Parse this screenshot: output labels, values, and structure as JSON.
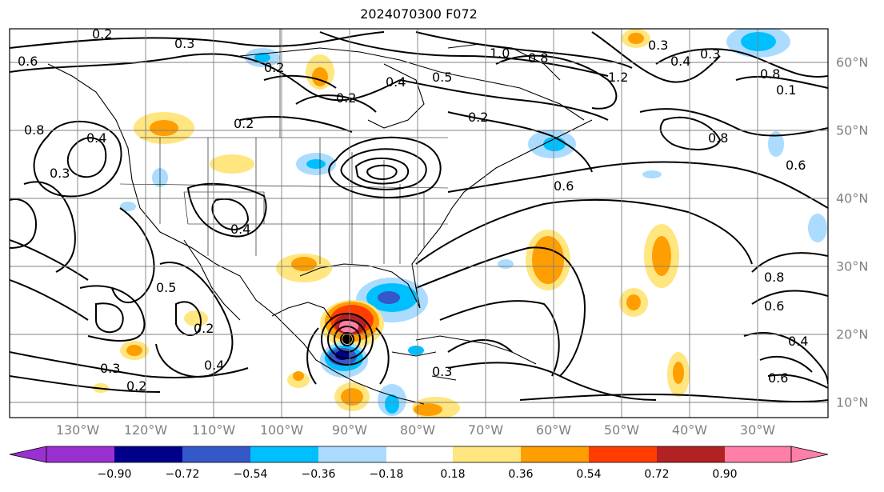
{
  "title": "2024070300 F072",
  "longitude_labels": [
    "130°W",
    "120°W",
    "110°W",
    "100°W",
    "90°W",
    "80°W",
    "70°W",
    "60°W",
    "50°W",
    "40°W",
    "30°W"
  ],
  "latitude_labels": [
    "60°N",
    "50°N",
    "40°N",
    "30°N",
    "20°N",
    "10°N"
  ],
  "contour_labels": [
    "0.2",
    "0.3",
    "0.3",
    "0.6",
    "0.2",
    "0.5",
    "0.2",
    "0.8",
    "0.4",
    "0.3",
    "1.0",
    "0.8",
    "1.2",
    "0.4",
    "0.3",
    "0.8",
    "0.1",
    "0.8",
    "0.6",
    "0.6",
    "0.2",
    "0.4",
    "0.2",
    "0.5",
    "0.4",
    "0.2",
    "0.4",
    "0.3",
    "0.2",
    "0.3",
    "0.8",
    "0.6",
    "0.4",
    "0.6"
  ],
  "colorbar": {
    "tick_labels": [
      "−0.90",
      "−0.72",
      "−0.54",
      "−0.36",
      "−0.18",
      "0.18",
      "0.36",
      "0.54",
      "0.72",
      "0.90"
    ],
    "colors": [
      "#9b30d0",
      "#00008b",
      "#3458c8",
      "#00bfff",
      "#abdcff",
      "#ffffff",
      "#ffe680",
      "#ff9e00",
      "#ff3d00",
      "#b22222",
      "#ff7fa8"
    ]
  },
  "map_colors": {
    "neg_strong": "#00008b",
    "neg_mid": "#3458c8",
    "neg_light": "#00bfff",
    "neg_faint": "#abdcff",
    "pos_faint": "#ffe680",
    "pos_light": "#ff9e00",
    "pos_mid": "#ff3d00",
    "pos_strong": "#b22222",
    "pos_max": "#ff7fa8"
  }
}
